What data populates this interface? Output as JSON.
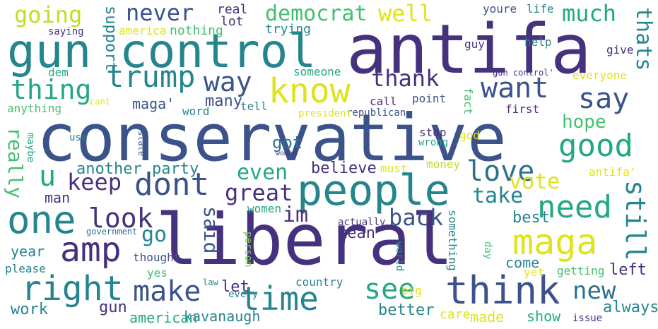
{
  "palette": {
    "dark_purple": "#46317e",
    "indigo": "#3b528b",
    "steel_blue": "#34618d",
    "blue_teal": "#2c728e",
    "teal": "#25858e",
    "teal_green": "#1f988b",
    "green_teal": "#22a884",
    "green": "#44bf70",
    "lime": "#7ad151",
    "yellow_green": "#bddf26",
    "yellow": "#e0e31a"
  },
  "words": [
    {
      "text": "conservative"
    },
    {
      "text": "liberal"
    },
    {
      "text": "antifa"
    },
    {
      "text": "gun control"
    },
    {
      "text": "people"
    },
    {
      "text": "know"
    },
    {
      "text": "trump"
    },
    {
      "text": "think"
    },
    {
      "text": "one"
    },
    {
      "text": "amp"
    },
    {
      "text": "right"
    },
    {
      "text": "make"
    },
    {
      "text": "time"
    },
    {
      "text": "maga"
    },
    {
      "text": "good"
    },
    {
      "text": "need"
    },
    {
      "text": "dont"
    },
    {
      "text": "love"
    },
    {
      "text": "want"
    },
    {
      "text": "say"
    },
    {
      "text": "see"
    },
    {
      "text": "thing"
    },
    {
      "text": "way"
    },
    {
      "text": "look"
    },
    {
      "text": "never"
    },
    {
      "text": "going"
    },
    {
      "text": "thank"
    },
    {
      "text": "much"
    },
    {
      "text": "still"
    },
    {
      "text": "new"
    },
    {
      "text": "well"
    },
    {
      "text": "democrat"
    },
    {
      "text": "great"
    },
    {
      "text": "u"
    },
    {
      "text": "back"
    },
    {
      "text": "keep"
    },
    {
      "text": "even"
    },
    {
      "text": "vote"
    },
    {
      "text": "take"
    },
    {
      "text": "hope"
    },
    {
      "text": "really"
    },
    {
      "text": "said"
    },
    {
      "text": "thats"
    },
    {
      "text": "go"
    },
    {
      "text": "im"
    },
    {
      "text": "got"
    },
    {
      "text": "left"
    },
    {
      "text": "always"
    },
    {
      "text": "work"
    },
    {
      "text": "gun"
    },
    {
      "text": "maga'"
    },
    {
      "text": "many"
    },
    {
      "text": "support"
    },
    {
      "text": "believe"
    },
    {
      "text": "party"
    },
    {
      "text": "another"
    },
    {
      "text": "mean"
    },
    {
      "text": "man"
    },
    {
      "text": "best"
    },
    {
      "text": "better"
    },
    {
      "text": "come"
    },
    {
      "text": "year"
    },
    {
      "text": "let"
    },
    {
      "text": "kavanaugh"
    },
    {
      "text": "american"
    },
    {
      "text": "show"
    },
    {
      "text": "made"
    },
    {
      "text": "care"
    },
    {
      "text": "real"
    },
    {
      "text": "lot"
    },
    {
      "text": "trying"
    },
    {
      "text": "nothing"
    },
    {
      "text": "america"
    },
    {
      "text": "saying"
    },
    {
      "text": "youre"
    },
    {
      "text": "life"
    },
    {
      "text": "help"
    },
    {
      "text": "guy"
    },
    {
      "text": "give"
    },
    {
      "text": "gun control'"
    },
    {
      "text": "everyone"
    },
    {
      "text": "someone"
    },
    {
      "text": "dem"
    },
    {
      "text": "call"
    },
    {
      "text": "point"
    },
    {
      "text": "first"
    },
    {
      "text": "fact"
    },
    {
      "text": "republican"
    },
    {
      "text": "president"
    },
    {
      "text": "tell"
    },
    {
      "text": "word"
    },
    {
      "text": "anything"
    },
    {
      "text": "cant"
    },
    {
      "text": "stop"
    },
    {
      "text": "god"
    },
    {
      "text": "wrong"
    },
    {
      "text": "money"
    },
    {
      "text": "antifa'"
    },
    {
      "text": "must"
    },
    {
      "text": "woman"
    },
    {
      "text": "state"
    },
    {
      "text": "maybe"
    },
    {
      "text": "use"
    },
    {
      "text": "women"
    },
    {
      "text": "actually"
    },
    {
      "text": "government"
    },
    {
      "text": "person"
    },
    {
      "text": "something"
    },
    {
      "text": "world"
    },
    {
      "text": "day"
    },
    {
      "text": "getting"
    },
    {
      "text": "yet"
    },
    {
      "text": "thought"
    },
    {
      "text": "please"
    },
    {
      "text": "yes"
    },
    {
      "text": "law"
    },
    {
      "text": "every"
    },
    {
      "text": "country"
    },
    {
      "text": "big"
    },
    {
      "text": "issue"
    }
  ]
}
